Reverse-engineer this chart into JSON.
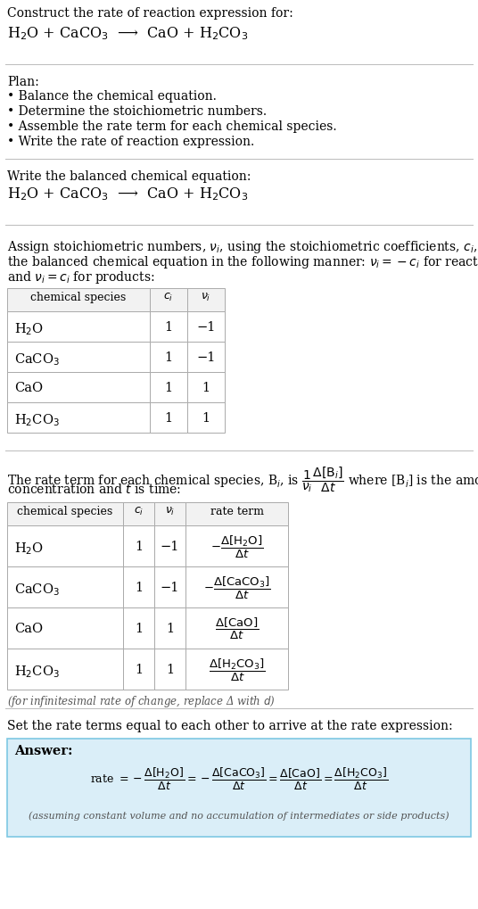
{
  "bg_color": "#ffffff",
  "answer_box_color": "#daeef8",
  "answer_box_border": "#7ec8e3",
  "text_color": "#000000",
  "gray_color": "#555555",
  "line_color": "#bbbbbb",
  "table_header_bg": "#f2f2f2",
  "table_border": "#aaaaaa",
  "title_line1": "Construct the rate of reaction expression for:",
  "title_line2": "H$_2$O + CaCO$_3$  ⟶  CaO + H$_2$CO$_3$",
  "plan_header": "Plan:",
  "plan_items": [
    "• Balance the chemical equation.",
    "• Determine the stoichiometric numbers.",
    "• Assemble the rate term for each chemical species.",
    "• Write the rate of reaction expression."
  ],
  "balanced_header": "Write the balanced chemical equation:",
  "balanced_eq": "H$_2$O + CaCO$_3$  ⟶  CaO + H$_2$CO$_3$",
  "stoich_intro_parts": [
    "Assign stoichiometric numbers, $\\nu_i$, using the stoichiometric coefficients, $c_i$, from",
    "the balanced chemical equation in the following manner: $\\nu_i = -c_i$ for reactants",
    "and $\\nu_i = c_i$ for products:"
  ],
  "table1_headers": [
    "chemical species",
    "$c_i$",
    "$\\nu_i$"
  ],
  "table1_rows": [
    [
      "H$_2$O",
      "1",
      "−1"
    ],
    [
      "CaCO$_3$",
      "1",
      "−1"
    ],
    [
      "CaO",
      "1",
      "1"
    ],
    [
      "H$_2$CO$_3$",
      "1",
      "1"
    ]
  ],
  "rate_intro_parts": [
    "The rate term for each chemical species, B$_i$, is $\\dfrac{1}{\\nu_i}\\dfrac{\\Delta[\\mathrm{B}_i]}{\\Delta t}$ where [B$_i$] is the amount",
    "concentration and $t$ is time:"
  ],
  "table2_headers": [
    "chemical species",
    "$c_i$",
    "$\\nu_i$",
    "rate term"
  ],
  "table2_rows": [
    [
      "H$_2$O",
      "1",
      "−1",
      "$-\\dfrac{\\Delta[\\mathrm{H_2O}]}{\\Delta t}$"
    ],
    [
      "CaCO$_3$",
      "1",
      "−1",
      "$-\\dfrac{\\Delta[\\mathrm{CaCO_3}]}{\\Delta t}$"
    ],
    [
      "CaO",
      "1",
      "1",
      "$\\dfrac{\\Delta[\\mathrm{CaO}]}{\\Delta t}$"
    ],
    [
      "H$_2$CO$_3$",
      "1",
      "1",
      "$\\dfrac{\\Delta[\\mathrm{H_2CO_3}]}{\\Delta t}$"
    ]
  ],
  "infinitesimal_note": "(for infinitesimal rate of change, replace Δ with $d$)",
  "set_equal_text": "Set the rate terms equal to each other to arrive at the rate expression:",
  "answer_label": "Answer:",
  "answer_eq": "rate $= -\\dfrac{\\Delta[\\mathrm{H_2O}]}{\\Delta t} = -\\dfrac{\\Delta[\\mathrm{CaCO_3}]}{\\Delta t} = \\dfrac{\\Delta[\\mathrm{CaO}]}{\\Delta t} = \\dfrac{\\Delta[\\mathrm{H_2CO_3}]}{\\Delta t}$",
  "answer_note": "(assuming constant volume and no accumulation of intermediates or side products)"
}
